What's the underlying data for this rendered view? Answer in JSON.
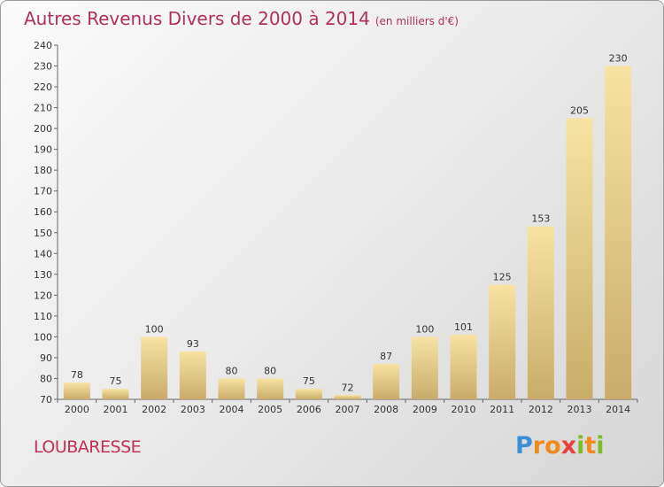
{
  "title": "Autres Revenus Divers de 2000 à 2014",
  "subtitle": "(en milliers d'€)",
  "commune": "LOUBARESSE",
  "logo": {
    "text": "Proxiti",
    "letters": [
      "P",
      "r",
      "o",
      "x",
      "i",
      "t",
      "i"
    ],
    "colors": [
      "#3a8fd6",
      "#f08a1c",
      "#f08a1c",
      "#e8403a",
      "#7fba2a",
      "#f08a1c",
      "#7fba2a"
    ]
  },
  "colors": {
    "bar_light": "#f7e3a3",
    "bar_dark": "#c9ac6a",
    "title": "#b0305a"
  },
  "chart_data": {
    "type": "bar",
    "title": "Autres Revenus Divers de 2000 à 2014",
    "subtitle": "(en milliers d'€)",
    "categories": [
      "2000",
      "2001",
      "2002",
      "2003",
      "2004",
      "2005",
      "2006",
      "2007",
      "2008",
      "2009",
      "2010",
      "2011",
      "2012",
      "2013",
      "2014"
    ],
    "values": [
      78,
      75,
      100,
      93,
      80,
      80,
      75,
      72,
      87,
      100,
      101,
      125,
      153,
      205,
      230
    ],
    "ylim": [
      70,
      240
    ],
    "yticks": [
      70,
      80,
      90,
      100,
      110,
      120,
      130,
      140,
      150,
      160,
      170,
      180,
      190,
      200,
      210,
      220,
      230,
      240
    ],
    "grid": false,
    "legend": "none"
  }
}
